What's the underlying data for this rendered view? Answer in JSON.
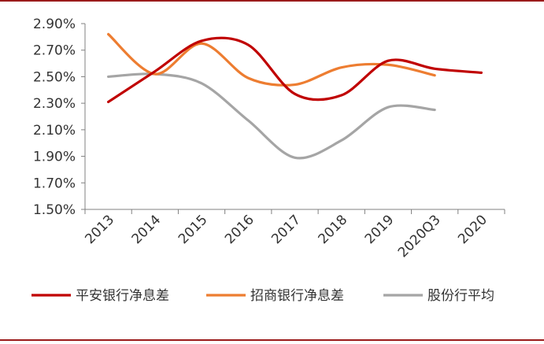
{
  "chart_data": {
    "type": "line",
    "title": "",
    "xlabel": "",
    "ylabel": "",
    "categories": [
      "2013",
      "2014",
      "2015",
      "2016",
      "2017",
      "2018",
      "2019",
      "2020Q3",
      "2020"
    ],
    "y_ticks": [
      "1.50%",
      "1.70%",
      "1.90%",
      "2.10%",
      "2.30%",
      "2.50%",
      "2.70%",
      "2.90%"
    ],
    "ylim": [
      1.5,
      2.9
    ],
    "grid": false,
    "legend_position": "bottom",
    "series": [
      {
        "name": "平安银行净息差",
        "color": "#c00000",
        "values": [
          2.31,
          2.54,
          2.77,
          2.74,
          2.37,
          2.36,
          2.62,
          2.56,
          2.53
        ]
      },
      {
        "name": "招商银行净息差",
        "color": "#ed7d31",
        "values": [
          2.82,
          2.52,
          2.75,
          2.49,
          2.44,
          2.57,
          2.59,
          2.51,
          null
        ]
      },
      {
        "name": "股份行平均",
        "color": "#a5a5a5",
        "values": [
          2.5,
          2.52,
          2.45,
          2.17,
          1.89,
          2.02,
          2.27,
          2.25,
          null
        ]
      }
    ]
  }
}
